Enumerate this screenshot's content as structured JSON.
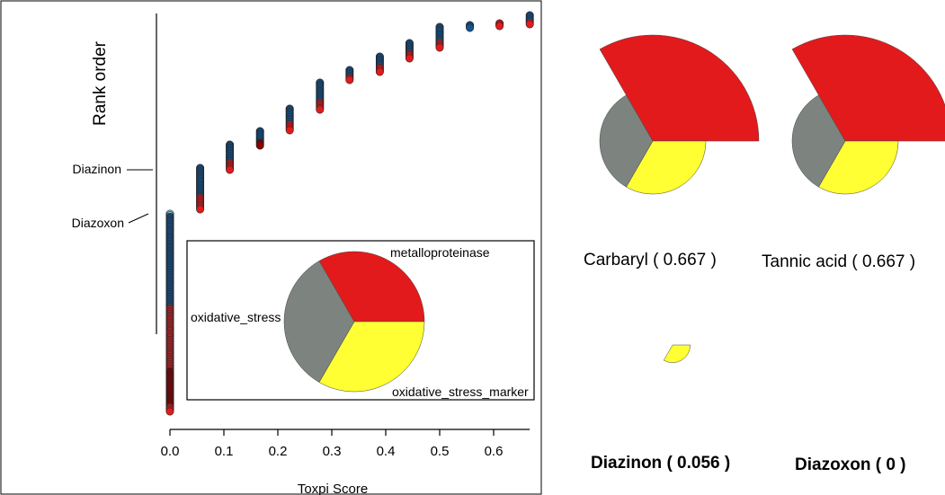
{
  "colors": {
    "red": "#E31A1C",
    "gray": "#7D837E",
    "yellow": "#FFFF33",
    "blue": "#15548E",
    "darkred": "#8B0000",
    "lightblue": "#8FD3F0"
  },
  "chart_data": [
    {
      "type": "scatter",
      "xlabel": "Toxpi Score",
      "ylabel": "Rank order",
      "xlim": [
        0,
        0.667
      ],
      "x_ticks": [
        "0.0",
        "0.1",
        "0.2",
        "0.3",
        "0.4",
        "0.5",
        "0.6"
      ],
      "x_tick_values": [
        0,
        0.1,
        0.2,
        0.3,
        0.4,
        0.5,
        0.6
      ],
      "annotations": [
        "Diazinon",
        "Diazoxon"
      ],
      "score_groups": [
        {
          "x": 0.0,
          "count": "many",
          "colors": [
            "blue",
            "red",
            "darkred"
          ]
        },
        {
          "x": 0.056,
          "colors": [
            "blue",
            "red"
          ]
        },
        {
          "x": 0.111,
          "colors": [
            "blue",
            "red"
          ]
        },
        {
          "x": 0.167,
          "colors": [
            "blue",
            "darkred"
          ]
        },
        {
          "x": 0.222,
          "colors": [
            "blue",
            "red"
          ]
        },
        {
          "x": 0.278,
          "colors": [
            "blue",
            "red"
          ]
        },
        {
          "x": 0.333,
          "colors": [
            "blue",
            "red"
          ]
        },
        {
          "x": 0.389,
          "colors": [
            "blue",
            "red"
          ]
        },
        {
          "x": 0.444,
          "colors": [
            "blue",
            "red"
          ]
        },
        {
          "x": 0.5,
          "colors": [
            "blue",
            "red"
          ]
        },
        {
          "x": 0.556,
          "colors": [
            "blue"
          ]
        },
        {
          "x": 0.611,
          "colors": [
            "red"
          ]
        },
        {
          "x": 0.667,
          "colors": [
            "blue",
            "red"
          ]
        }
      ]
    },
    {
      "type": "pie",
      "title": "",
      "slices": [
        {
          "label": "metalloproteinase",
          "color": "red"
        },
        {
          "label": "oxidative_stress_marker",
          "color": "yellow"
        },
        {
          "label": "oxidative_stress",
          "color": "gray"
        }
      ]
    },
    {
      "type": "pie",
      "charts": [
        {
          "label": "Carbaryl  ( 0.667 )",
          "bold": false,
          "score": 0.667,
          "slice_values": {
            "red": 1.0,
            "yellow": 0.5,
            "gray": 0.5
          }
        },
        {
          "label": "Tannic acid  ( 0.667 )",
          "bold": false,
          "score": 0.667,
          "slice_values": {
            "red": 1.0,
            "yellow": 0.5,
            "gray": 0.5
          }
        },
        {
          "label": "Diazinon  ( 0.056 )",
          "bold": true,
          "score": 0.056,
          "slice_values": {
            "red": 0,
            "yellow": 0.167,
            "gray": 0
          }
        },
        {
          "label": "Diazoxon  ( 0 )",
          "bold": true,
          "score": 0,
          "slice_values": {
            "red": 0,
            "yellow": 0,
            "gray": 0
          }
        }
      ]
    }
  ]
}
